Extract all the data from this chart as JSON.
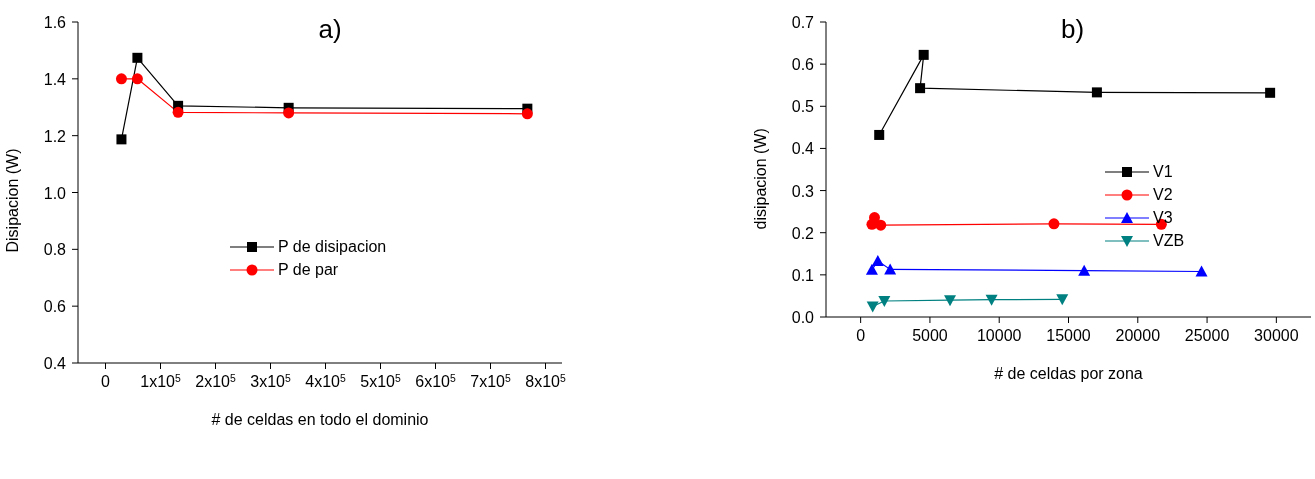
{
  "chart_data": [
    {
      "type": "line",
      "title": "a)",
      "xlabel": "# de celdas en todo el dominio",
      "ylabel": "Disipacion (W)",
      "xlim": [
        -50000,
        830000
      ],
      "xticks": [
        0,
        {
          "value": 100000,
          "label": "1x10$^{5}$"
        },
        {
          "value": 200000,
          "label": "2x10$^{5}$"
        },
        {
          "value": 300000,
          "label": "3x10$^{5}$"
        },
        {
          "value": 400000,
          "label": "4x10$^{5}$"
        },
        {
          "value": 500000,
          "label": "5x10$^{5}$"
        },
        {
          "value": 600000,
          "label": "6x10$^{5}$"
        },
        {
          "value": 700000,
          "label": "7x10$^{5}$"
        },
        {
          "value": 800000,
          "label": "8x10$^{5}$"
        }
      ],
      "ylim": [
        0.4,
        1.6
      ],
      "yticks": [
        0.4,
        0.6,
        0.8,
        {
          "value": 1,
          "label": "1.0"
        },
        1.2,
        1.4,
        1.6
      ],
      "grid": false,
      "legend": "center",
      "series": [
        {
          "name": "P de disipacion",
          "color": "#000000",
          "marker": "square",
          "x": [
            29000,
            58000,
            132000,
            333000,
            767000
          ],
          "values": [
            1.187,
            1.474,
            1.305,
            1.298,
            1.295
          ]
        },
        {
          "name": "P de par",
          "color": "#ff0000",
          "marker": "circle",
          "x": [
            29000,
            58000,
            132000,
            333000,
            767000
          ],
          "values": [
            1.4,
            1.4,
            1.282,
            1.28,
            1.277
          ]
        }
      ]
    },
    {
      "type": "line",
      "title": "b)",
      "xlabel": "# de celdas por zona",
      "ylabel": "disipacion (W)",
      "xlim": [
        -2500,
        32500
      ],
      "xticks": [
        0,
        5000,
        10000,
        15000,
        20000,
        25000,
        30000
      ],
      "ylim": [
        0.0,
        0.7
      ],
      "yticks": [
        {
          "value": 0,
          "label": "0.0"
        },
        0.1,
        0.2,
        0.3,
        0.4,
        0.5,
        0.6,
        0.7
      ],
      "grid": false,
      "legend": "right",
      "series": [
        {
          "name": "V1",
          "color": "#000000",
          "marker": "square",
          "x": [
            1340,
            4550,
            4290,
            17050,
            29550
          ],
          "values": [
            0.432,
            0.622,
            0.543,
            0.533,
            0.532
          ]
        },
        {
          "name": "V2",
          "color": "#ff0000",
          "marker": "circle",
          "x": [
            815,
            1000,
            1450,
            13950,
            21700
          ],
          "values": [
            0.22,
            0.236,
            0.218,
            0.221,
            0.22
          ]
        },
        {
          "name": "V3",
          "color": "#0000ff",
          "marker": "triangle",
          "x": [
            815,
            1240,
            2130,
            16130,
            24600
          ],
          "values": [
            0.112,
            0.133,
            0.113,
            0.11,
            0.108
          ]
        },
        {
          "name": "VZB",
          "color": "#008080",
          "marker": "triangle-down",
          "x": [
            870,
            1710,
            6450,
            9450,
            14550
          ],
          "values": [
            0.025,
            0.038,
            0.04,
            0.041,
            0.042
          ]
        }
      ]
    }
  ]
}
